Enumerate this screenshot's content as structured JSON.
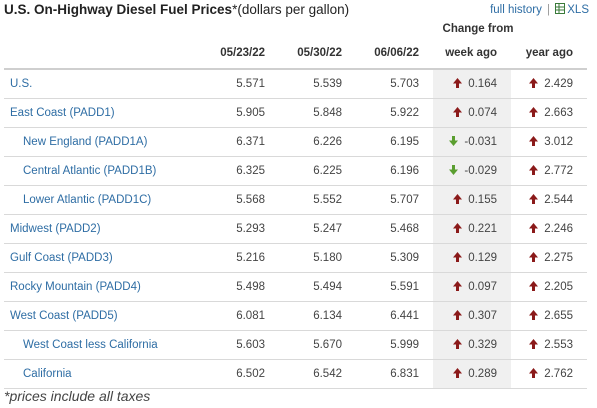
{
  "header": {
    "title": "U.S. On-Highway Diesel Fuel Prices",
    "title_suffix": "*(dollars per gallon)",
    "full_history_link": "full history",
    "xls_link": "XLS"
  },
  "table": {
    "change_from_label": "Change from",
    "columns": [
      "",
      "05/23/22",
      "05/30/22",
      "06/06/22",
      "week ago",
      "year ago"
    ],
    "rows": [
      {
        "name": "U.S.",
        "v1": "5.571",
        "v2": "5.539",
        "v3": "5.703",
        "week": "0.164",
        "week_dir": "up",
        "year": "2.429",
        "year_dir": "up",
        "indent": false
      },
      {
        "name": "East Coast (PADD1)",
        "v1": "5.905",
        "v2": "5.848",
        "v3": "5.922",
        "week": "0.074",
        "week_dir": "up",
        "year": "2.663",
        "year_dir": "up",
        "indent": false
      },
      {
        "name": "New England (PADD1A)",
        "v1": "6.371",
        "v2": "6.226",
        "v3": "6.195",
        "week": "-0.031",
        "week_dir": "down",
        "year": "3.012",
        "year_dir": "up",
        "indent": true
      },
      {
        "name": "Central Atlantic (PADD1B)",
        "v1": "6.325",
        "v2": "6.225",
        "v3": "6.196",
        "week": "-0.029",
        "week_dir": "down",
        "year": "2.772",
        "year_dir": "up",
        "indent": true
      },
      {
        "name": "Lower Atlantic (PADD1C)",
        "v1": "5.568",
        "v2": "5.552",
        "v3": "5.707",
        "week": "0.155",
        "week_dir": "up",
        "year": "2.544",
        "year_dir": "up",
        "indent": true
      },
      {
        "name": "Midwest (PADD2)",
        "v1": "5.293",
        "v2": "5.247",
        "v3": "5.468",
        "week": "0.221",
        "week_dir": "up",
        "year": "2.246",
        "year_dir": "up",
        "indent": false
      },
      {
        "name": "Gulf Coast (PADD3)",
        "v1": "5.216",
        "v2": "5.180",
        "v3": "5.309",
        "week": "0.129",
        "week_dir": "up",
        "year": "2.275",
        "year_dir": "up",
        "indent": false
      },
      {
        "name": "Rocky Mountain (PADD4)",
        "v1": "5.498",
        "v2": "5.494",
        "v3": "5.591",
        "week": "0.097",
        "week_dir": "up",
        "year": "2.205",
        "year_dir": "up",
        "indent": false
      },
      {
        "name": "West Coast (PADD5)",
        "v1": "6.081",
        "v2": "6.134",
        "v3": "6.441",
        "week": "0.307",
        "week_dir": "up",
        "year": "2.655",
        "year_dir": "up",
        "indent": false
      },
      {
        "name": "West Coast less California",
        "v1": "5.603",
        "v2": "5.670",
        "v3": "5.999",
        "week": "0.329",
        "week_dir": "up",
        "year": "2.553",
        "year_dir": "up",
        "indent": true
      },
      {
        "name": "California",
        "v1": "6.502",
        "v2": "6.542",
        "v3": "6.831",
        "week": "0.289",
        "week_dir": "up",
        "year": "2.762",
        "year_dir": "up",
        "indent": true
      }
    ]
  },
  "footnote": "*prices include all taxes",
  "colors": {
    "up_arrow": "#8b1a1a",
    "down_arrow": "#5a9e2f",
    "link": "#2e6da4",
    "shaded_column": "#f0f0f0"
  }
}
